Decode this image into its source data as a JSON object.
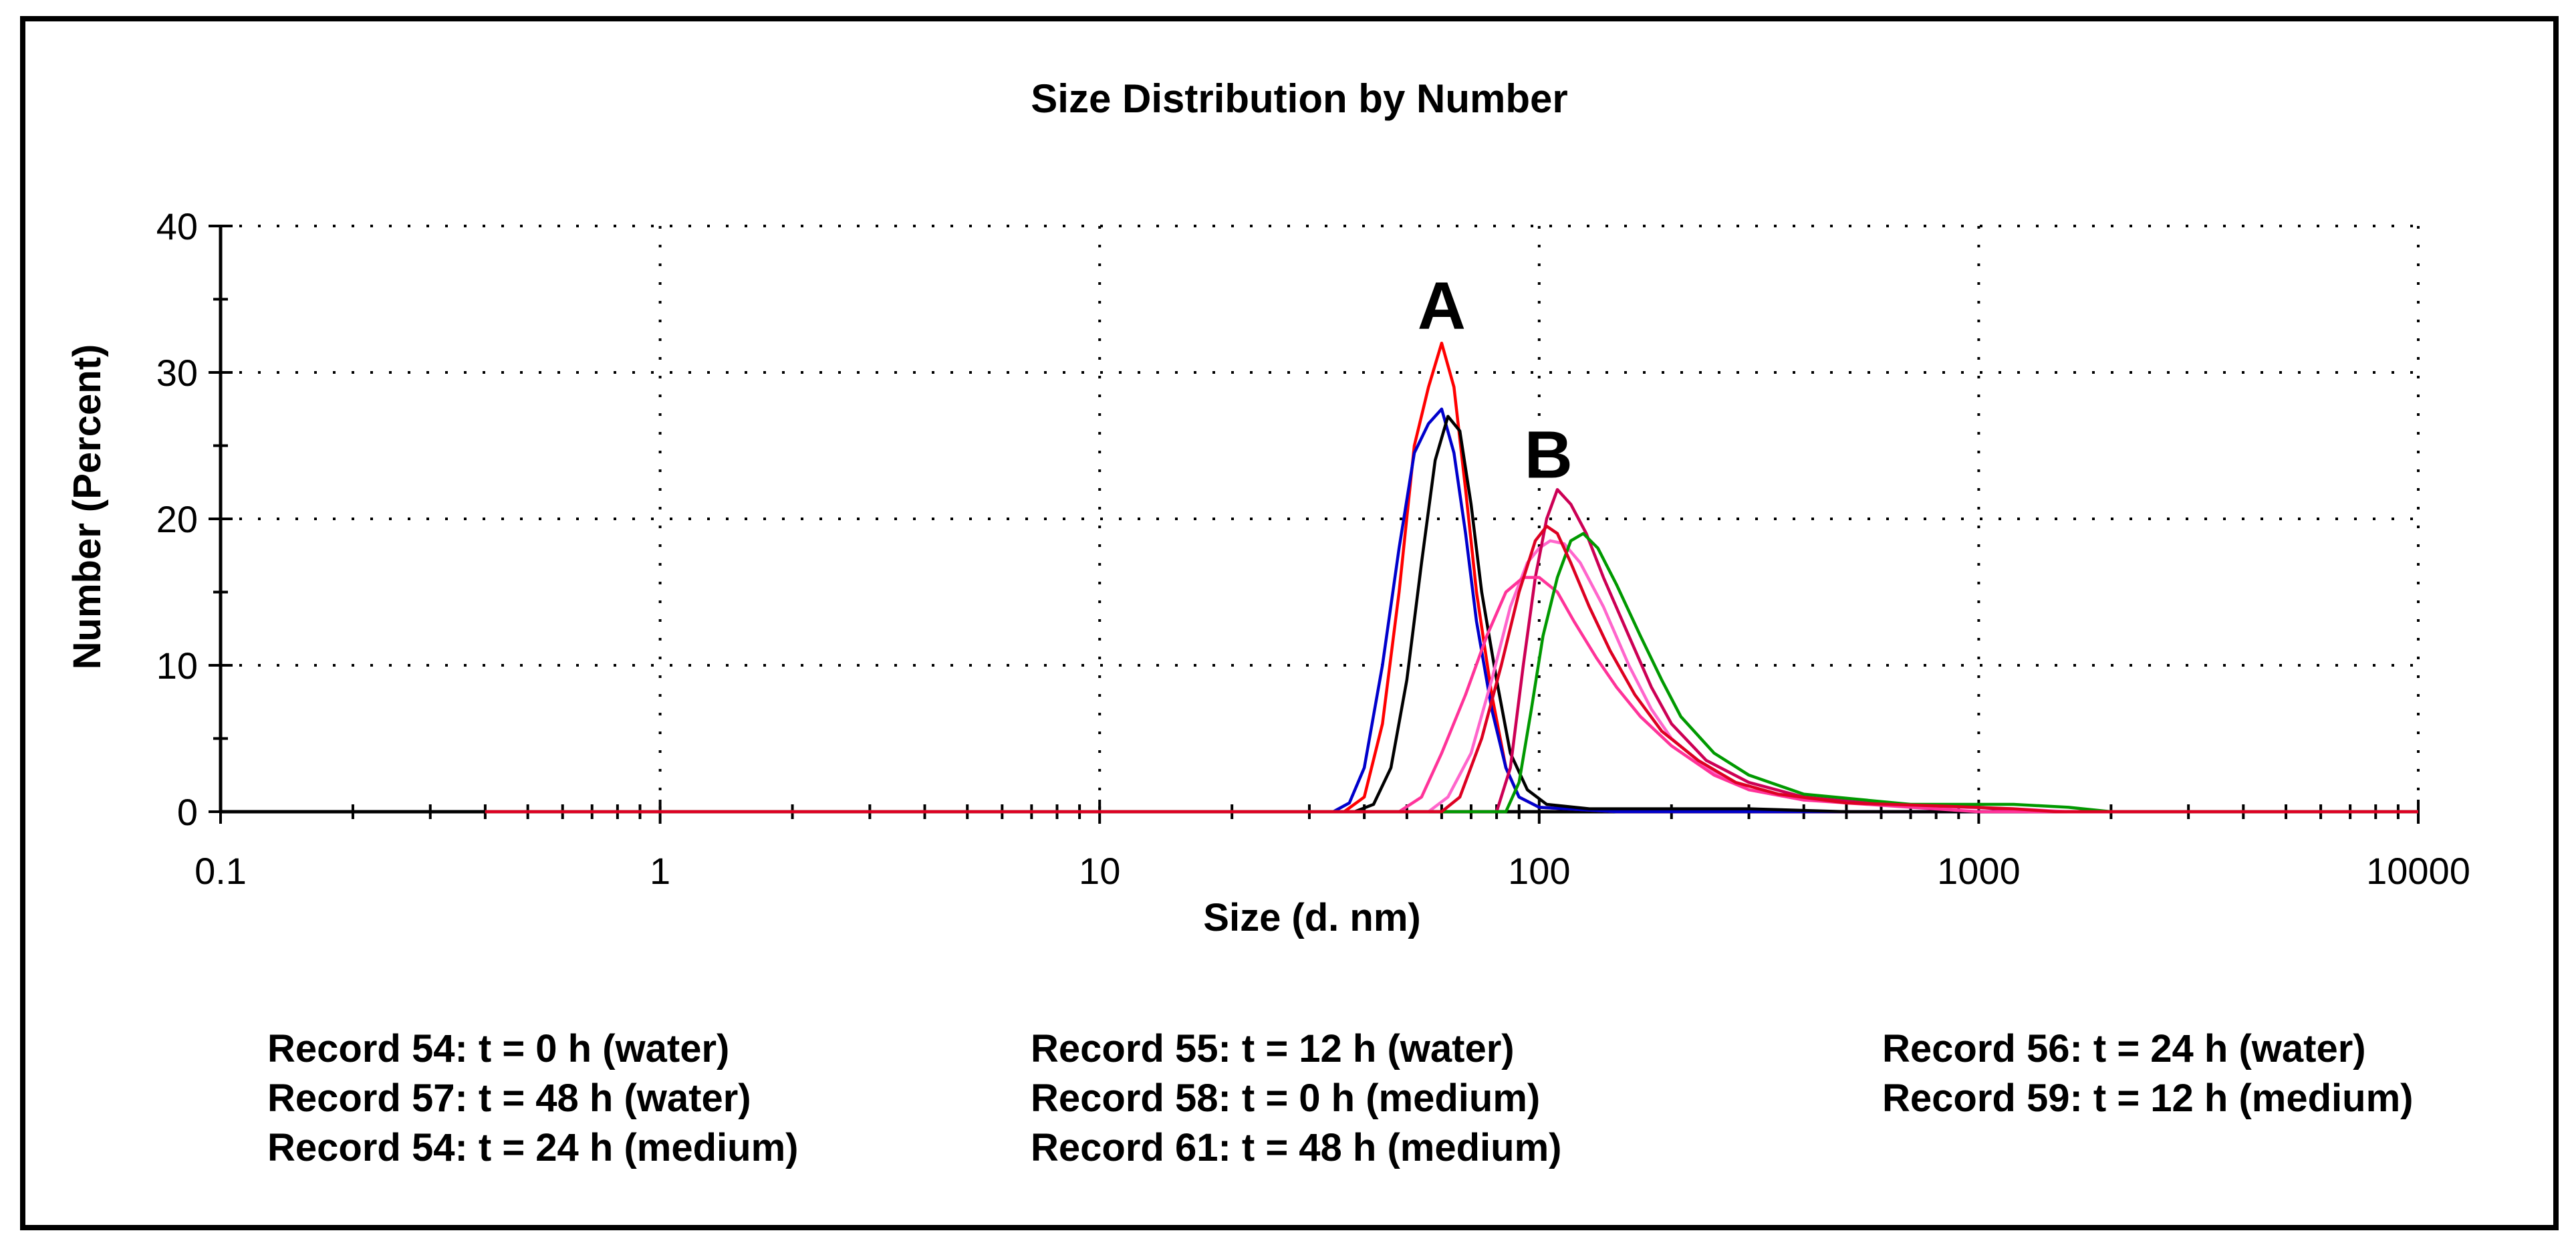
{
  "chart_data": {
    "type": "line",
    "title": "Size Distribution by Number",
    "xlabel": "Size (d. nm)",
    "ylabel": "Number (Percent)",
    "xscale": "log",
    "xlim": [
      0.1,
      10000
    ],
    "ylim": [
      0,
      40
    ],
    "xticks": [
      {
        "value": 0.1,
        "label": "0.1"
      },
      {
        "value": 1,
        "label": "1"
      },
      {
        "value": 10,
        "label": "10"
      },
      {
        "value": 100,
        "label": "100"
      },
      {
        "value": 1000,
        "label": "1000"
      },
      {
        "value": 10000,
        "label": "10000"
      }
    ],
    "yticks": [
      {
        "value": 0,
        "label": "0"
      },
      {
        "value": 10,
        "label": "10"
      },
      {
        "value": 20,
        "label": "20"
      },
      {
        "value": 30,
        "label": "30"
      },
      {
        "value": 40,
        "label": "40"
      }
    ],
    "grid": true,
    "annotations": [
      {
        "text": "A",
        "x": 60,
        "y": 33
      },
      {
        "text": "B",
        "x": 105,
        "y": 22.8
      }
    ],
    "legend_rows": [
      [
        "Record 54: t = 0 h (water)",
        "Record 55: t = 12 h (water)",
        "Record 56: t = 24 h (water)"
      ],
      [
        "Record 57: t = 48 h (water)",
        "Record 58: t = 0 h (medium)",
        "Record 59: t = 12 h (medium)"
      ],
      [
        "Record 54: t = 24 h (medium)",
        "Record 61: t = 48 h (medium)",
        ""
      ]
    ],
    "series": [
      {
        "name": "Record 54: t = 0 h (water)",
        "color": "#ff0000",
        "points": [
          [
            0.4,
            0
          ],
          [
            36,
            0
          ],
          [
            40,
            1
          ],
          [
            44,
            6
          ],
          [
            48,
            15
          ],
          [
            52,
            25
          ],
          [
            56,
            29
          ],
          [
            60,
            32
          ],
          [
            64,
            29
          ],
          [
            68,
            22
          ],
          [
            72,
            15
          ],
          [
            78,
            8
          ],
          [
            84,
            3
          ],
          [
            90,
            1
          ],
          [
            100,
            0.3
          ],
          [
            150,
            0
          ],
          [
            10000,
            0
          ]
        ]
      },
      {
        "name": "Record 55: t = 12 h (water)",
        "color": "#0000cc",
        "points": [
          [
            0.4,
            0
          ],
          [
            34,
            0
          ],
          [
            37,
            0.6
          ],
          [
            40,
            3
          ],
          [
            44,
            10
          ],
          [
            48,
            18
          ],
          [
            52,
            24.5
          ],
          [
            56,
            26.5
          ],
          [
            60,
            27.5
          ],
          [
            64,
            24.5
          ],
          [
            68,
            19
          ],
          [
            72,
            13
          ],
          [
            78,
            7
          ],
          [
            84,
            3
          ],
          [
            90,
            1
          ],
          [
            100,
            0.3
          ],
          [
            150,
            0
          ],
          [
            10000,
            0
          ]
        ]
      },
      {
        "name": "Record 56: t = 24 h (water)",
        "color": "#000000",
        "points": [
          [
            0.4,
            0
          ],
          [
            38,
            0
          ],
          [
            42,
            0.5
          ],
          [
            46,
            3
          ],
          [
            50,
            9
          ],
          [
            54,
            17
          ],
          [
            58,
            24
          ],
          [
            62,
            27
          ],
          [
            66,
            26
          ],
          [
            70,
            21
          ],
          [
            74,
            15
          ],
          [
            80,
            9
          ],
          [
            86,
            4
          ],
          [
            94,
            1.5
          ],
          [
            104,
            0.5
          ],
          [
            130,
            0.2
          ],
          [
            300,
            0.2
          ],
          [
            500,
            0
          ],
          [
            10000,
            0
          ]
        ]
      },
      {
        "name": "Record 57: t = 48 h (water)",
        "color": "#ff66cc",
        "points": [
          [
            0.4,
            0
          ],
          [
            56,
            0
          ],
          [
            62,
            1
          ],
          [
            70,
            4
          ],
          [
            78,
            9
          ],
          [
            86,
            14
          ],
          [
            94,
            17
          ],
          [
            100,
            18
          ],
          [
            106,
            18.5
          ],
          [
            114,
            18.3
          ],
          [
            124,
            17
          ],
          [
            140,
            14
          ],
          [
            160,
            10
          ],
          [
            180,
            7
          ],
          [
            200,
            5
          ],
          [
            240,
            3
          ],
          [
            300,
            1.5
          ],
          [
            400,
            0.8
          ],
          [
            700,
            0.4
          ],
          [
            1200,
            0.2
          ],
          [
            1600,
            0
          ],
          [
            10000,
            0
          ]
        ]
      },
      {
        "name": "Record 58: t = 0 h (medium)",
        "color": "#cc0055",
        "points": [
          [
            0.4,
            0
          ],
          [
            80,
            0
          ],
          [
            86,
            3
          ],
          [
            92,
            10
          ],
          [
            98,
            16
          ],
          [
            104,
            20
          ],
          [
            110,
            22
          ],
          [
            118,
            21
          ],
          [
            128,
            19
          ],
          [
            140,
            16
          ],
          [
            160,
            12
          ],
          [
            180,
            8.5
          ],
          [
            200,
            6
          ],
          [
            240,
            3.5
          ],
          [
            300,
            2
          ],
          [
            400,
            1
          ],
          [
            600,
            0.5
          ],
          [
            1000,
            0.3
          ],
          [
            1300,
            0
          ],
          [
            10000,
            0
          ]
        ]
      },
      {
        "name": "Record 59: t = 12 h (medium)",
        "color": "#ff3399",
        "points": [
          [
            0.4,
            0
          ],
          [
            48,
            0
          ],
          [
            54,
            1
          ],
          [
            60,
            4
          ],
          [
            68,
            8
          ],
          [
            76,
            12
          ],
          [
            84,
            15
          ],
          [
            92,
            16
          ],
          [
            100,
            16
          ],
          [
            110,
            15
          ],
          [
            120,
            13
          ],
          [
            135,
            10.5
          ],
          [
            150,
            8.5
          ],
          [
            170,
            6.5
          ],
          [
            200,
            4.5
          ],
          [
            250,
            2.5
          ],
          [
            300,
            1.5
          ],
          [
            400,
            0.8
          ],
          [
            700,
            0.3
          ],
          [
            1000,
            0
          ],
          [
            10000,
            0
          ]
        ]
      },
      {
        "name": "Record 54: t = 24 h (medium)",
        "color": "#009900",
        "points": [
          [
            0.4,
            0
          ],
          [
            84,
            0
          ],
          [
            90,
            2
          ],
          [
            96,
            7
          ],
          [
            102,
            12
          ],
          [
            110,
            16
          ],
          [
            118,
            18.5
          ],
          [
            126,
            19
          ],
          [
            136,
            18
          ],
          [
            150,
            15.5
          ],
          [
            170,
            12
          ],
          [
            190,
            9
          ],
          [
            210,
            6.5
          ],
          [
            250,
            4
          ],
          [
            300,
            2.5
          ],
          [
            400,
            1.2
          ],
          [
            700,
            0.5
          ],
          [
            1200,
            0.5
          ],
          [
            1600,
            0.3
          ],
          [
            2000,
            0
          ],
          [
            10000,
            0
          ]
        ]
      },
      {
        "name": "Record 61: t = 48 h (medium)",
        "color": "#dd0022",
        "points": [
          [
            0.4,
            0
          ],
          [
            60,
            0
          ],
          [
            66,
            1
          ],
          [
            74,
            5
          ],
          [
            82,
            10
          ],
          [
            90,
            15
          ],
          [
            98,
            18.5
          ],
          [
            104,
            19.5
          ],
          [
            110,
            19
          ],
          [
            118,
            17
          ],
          [
            130,
            14
          ],
          [
            145,
            11
          ],
          [
            165,
            8
          ],
          [
            190,
            5.5
          ],
          [
            230,
            3.5
          ],
          [
            280,
            2
          ],
          [
            350,
            1.2
          ],
          [
            500,
            0.6
          ],
          [
            800,
            0.4
          ],
          [
            1200,
            0.2
          ],
          [
            1500,
            0
          ],
          [
            10000,
            0
          ]
        ]
      }
    ]
  }
}
